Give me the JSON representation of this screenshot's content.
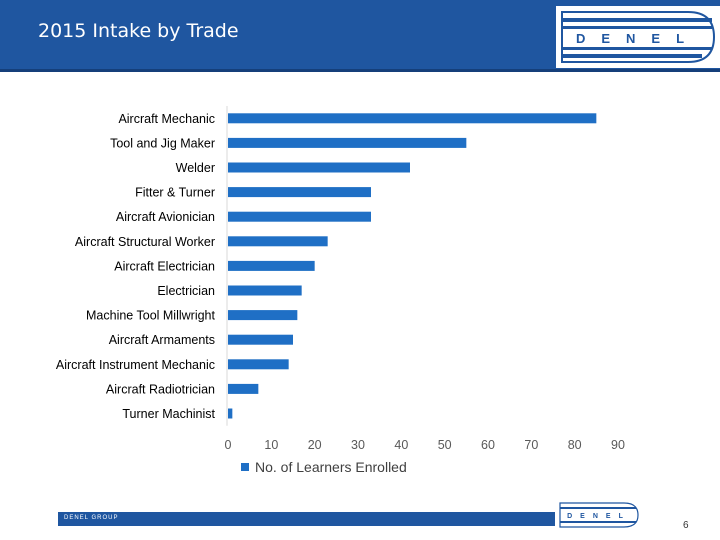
{
  "header": {
    "title": "2015 Intake by Trade"
  },
  "logo": {
    "text": "DENEL"
  },
  "footer": {
    "group_text": "DENEL GROUP",
    "page_number": "6"
  },
  "colors": {
    "header_blue": "#1f56a0",
    "bar_blue": "#1f6fc5"
  },
  "chart_data": {
    "type": "bar",
    "orientation": "horizontal",
    "categories": [
      "Aircraft Mechanic",
      "Tool and Jig Maker",
      "Welder",
      "Fitter & Turner",
      "Aircraft Avionician",
      "Aircraft Structural Worker",
      "Aircraft Electrician",
      "Electrician",
      "Machine Tool Millwright",
      "Aircraft Armaments",
      "Aircraft Instrument Mechanic",
      "Aircraft Radiotrician",
      "Turner Machinist"
    ],
    "series": [
      {
        "name": "No. of Learners Enrolled",
        "values": [
          85,
          55,
          42,
          33,
          33,
          23,
          20,
          17,
          16,
          15,
          14,
          7,
          1
        ]
      }
    ],
    "xlim": [
      0,
      90
    ],
    "xticks": [
      "0",
      "10",
      "20",
      "30",
      "40",
      "50",
      "60",
      "70",
      "80",
      "90"
    ],
    "grid": false,
    "legend_position": "bottom"
  }
}
